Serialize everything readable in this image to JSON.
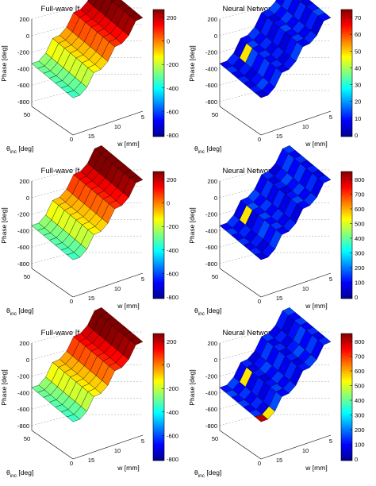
{
  "colormap": [
    "#00008f",
    "#0000ff",
    "#0080ff",
    "#00ffff",
    "#80ff80",
    "#ffff00",
    "#ff8000",
    "#ff0000",
    "#800000"
  ],
  "axes": {
    "phase_label": "Phase [deg]",
    "w_label": "w [mm]",
    "theta_label": "θ",
    "theta_sub": "inc",
    "theta_unit": " [deg]",
    "phase_ticks": [
      "200",
      "0",
      "-200",
      "-400",
      "-600",
      "-800"
    ],
    "w_ticks": [
      "15",
      "10",
      "5"
    ],
    "theta_ticks": [
      "50",
      "0"
    ]
  },
  "chart_data": [
    {
      "type": "surface",
      "panel": "fullwave",
      "row": 0,
      "title": "Full-wave [f = 7.5 GHz]",
      "zlim": [
        -800,
        200
      ],
      "xlabel": "w [mm]",
      "ylabel": "θinc [deg]",
      "zlabel": "Phase [deg]",
      "x_range": [
        15,
        5
      ],
      "y_range": [
        0,
        50
      ],
      "colorbar": {
        "ticks": [
          "200",
          "0",
          "-200",
          "-400",
          "-600",
          "-800"
        ],
        "range": [
          -800,
          200
        ]
      }
    },
    {
      "type": "surface",
      "panel": "nn",
      "row": 0,
      "title": "Neural Network (and error)",
      "zlim": [
        -800,
        200
      ],
      "xlabel": "w [mm]",
      "ylabel": "θinc [deg]",
      "zlabel": "Phase [deg]",
      "colorbar": {
        "ticks": [
          "70",
          "60",
          "50",
          "40",
          "30",
          "20",
          "10",
          "0"
        ],
        "range": [
          0,
          80
        ]
      }
    },
    {
      "type": "surface",
      "panel": "fullwave",
      "row": 1,
      "title": "Full-wave [f = 7.8 GHz]",
      "zlim": [
        -800,
        200
      ],
      "xlabel": "w [mm]",
      "ylabel": "θinc [deg]",
      "zlabel": "Phase [deg]",
      "colorbar": {
        "ticks": [
          "200",
          "0",
          "-200",
          "-400",
          "-600",
          "-800"
        ],
        "range": [
          -800,
          200
        ]
      }
    },
    {
      "type": "surface",
      "panel": "nn",
      "row": 1,
      "title": "Neural Network (and error)",
      "zlim": [
        -800,
        200
      ],
      "xlabel": "w [mm]",
      "ylabel": "θinc [deg]",
      "zlabel": "Phase [deg]",
      "colorbar": {
        "ticks": [
          "800",
          "700",
          "600",
          "500",
          "400",
          "300",
          "200",
          "100",
          "0"
        ],
        "range": [
          0,
          800
        ]
      }
    },
    {
      "type": "surface",
      "panel": "fullwave",
      "row": 2,
      "title": "Full-wave [f = 8.1 GHz]",
      "zlim": [
        -800,
        200
      ],
      "xlabel": "w [mm]",
      "ylabel": "θinc [deg]",
      "zlabel": "Phase [deg]",
      "colorbar": {
        "ticks": [
          "200",
          "0",
          "-200",
          "-400",
          "-600",
          "-800"
        ],
        "range": [
          -800,
          200
        ]
      }
    },
    {
      "type": "surface",
      "panel": "nn",
      "row": 2,
      "title": "Neural Network (and error)",
      "zlim": [
        -800,
        200
      ],
      "xlabel": "w [mm]",
      "ylabel": "θinc [deg]",
      "zlabel": "Phase [deg]",
      "colorbar": {
        "ticks": [
          "800",
          "700",
          "600",
          "500",
          "400",
          "300",
          "200",
          "100",
          "0"
        ],
        "range": [
          0,
          800
        ]
      }
    }
  ]
}
